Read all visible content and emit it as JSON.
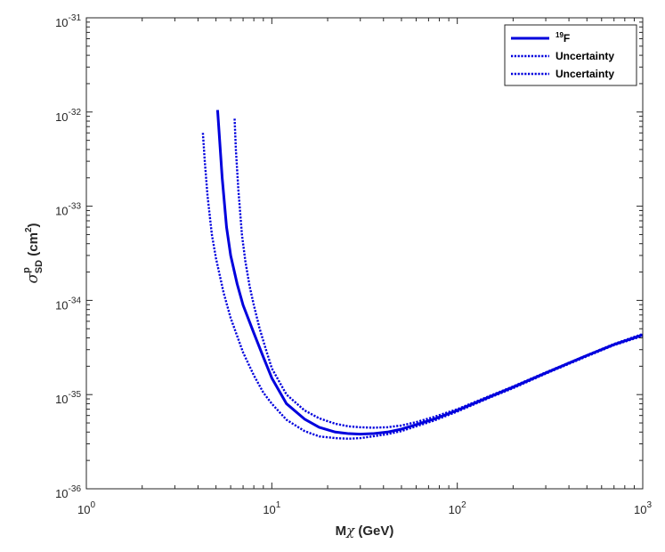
{
  "chart_data": {
    "type": "line",
    "xscale": "log",
    "yscale": "log",
    "xlim": [
      1,
      1000
    ],
    "ylim": [
      1e-36,
      1e-31
    ],
    "xlabel": {
      "main": "M",
      "sym": "χ",
      "unit": " (GeV)"
    },
    "ylabel": {
      "sym": "σ",
      "sup": "p",
      "sub": "SD",
      "unit": " (cm",
      "unit_sup": "2",
      "unit_end": ")"
    },
    "x_ticks": [
      {
        "value": 1,
        "base": "10",
        "exp": "0"
      },
      {
        "value": 10,
        "base": "10",
        "exp": "1"
      },
      {
        "value": 100,
        "base": "10",
        "exp": "2"
      },
      {
        "value": 1000,
        "base": "10",
        "exp": "3"
      }
    ],
    "y_ticks": [
      {
        "value": 1e-36,
        "base": "10",
        "exp": "-36"
      },
      {
        "value": 1e-35,
        "base": "10",
        "exp": "-35"
      },
      {
        "value": 1e-34,
        "base": "10",
        "exp": "-34"
      },
      {
        "value": 1e-33,
        "base": "10",
        "exp": "-33"
      },
      {
        "value": 1e-32,
        "base": "10",
        "exp": "-32"
      },
      {
        "value": 1e-31,
        "base": "10",
        "exp": "-31"
      }
    ],
    "grid": false,
    "legend_position": "top-right",
    "series": [
      {
        "name": "19F",
        "name_sup": "19",
        "name_main": "F",
        "style": "solid",
        "color": "#0000dd",
        "x": [
          5.1,
          5.2,
          5.4,
          5.7,
          6.0,
          6.5,
          7.0,
          8.0,
          9.0,
          10.0,
          12.0,
          15.0,
          18.0,
          22.0,
          26.0,
          30.0,
          35.0,
          42.0,
          50.0,
          60.0,
          75.0,
          100.0,
          150.0,
          200.0,
          300.0,
          500.0,
          700.0,
          1000.0
        ],
        "y": [
          1.05e-32,
          6e-33,
          2e-33,
          6e-34,
          3e-34,
          1.5e-34,
          8.9e-35,
          4.5e-35,
          2.5e-35,
          1.5e-35,
          8e-36,
          5.5e-36,
          4.5e-36,
          4e-36,
          3.85e-36,
          3.8e-36,
          3.85e-36,
          4e-36,
          4.3e-36,
          4.8e-36,
          5.5e-36,
          6.8e-36,
          9.5e-36,
          1.2e-35,
          1.7e-35,
          2.6e-35,
          3.4e-35,
          4.3e-35
        ]
      },
      {
        "name": "Uncertainty",
        "style": "dotted",
        "color": "#0000dd",
        "x": [
          6.3,
          6.4,
          6.6,
          6.9,
          7.2,
          7.6,
          8.0,
          8.6,
          9.3,
          10.0,
          12.0,
          15.0,
          18.0,
          22.0,
          26.0,
          30.0,
          35.0,
          42.0,
          50.0,
          60.0,
          75.0,
          100.0,
          150.0,
          200.0,
          300.0,
          500.0,
          700.0,
          1000.0
        ],
        "y": [
          8.5e-33,
          4e-33,
          1.5e-33,
          5e-34,
          2.6e-34,
          1.4e-34,
          8.9e-35,
          5e-35,
          3e-35,
          1.9e-35,
          1e-35,
          6.8e-36,
          5.6e-36,
          4.9e-36,
          4.6e-36,
          4.5e-36,
          4.45e-36,
          4.5e-36,
          4.7e-36,
          5.1e-36,
          5.8e-36,
          7e-36,
          9.7e-36,
          1.22e-35,
          1.72e-35,
          2.62e-35,
          3.45e-35,
          4.4e-35
        ]
      },
      {
        "name": "Uncertainty",
        "style": "dotted",
        "color": "#0000dd",
        "x": [
          4.25,
          4.35,
          4.5,
          4.75,
          5.0,
          5.5,
          6.0,
          7.0,
          8.0,
          9.0,
          10.0,
          12.0,
          15.0,
          18.0,
          22.0,
          26.0,
          30.0,
          35.0,
          42.0,
          50.0,
          60.0,
          75.0,
          100.0,
          150.0,
          200.0,
          300.0,
          500.0,
          700.0,
          1000.0
        ],
        "y": [
          6e-33,
          3e-33,
          1.3e-33,
          5e-34,
          2.8e-34,
          1.2e-34,
          6.5e-35,
          2.8e-35,
          1.6e-35,
          1.05e-35,
          8e-36,
          5.4e-36,
          4.1e-36,
          3.6e-36,
          3.45e-36,
          3.4e-36,
          3.45e-36,
          3.6e-36,
          3.8e-36,
          4.1e-36,
          4.6e-36,
          5.3e-36,
          6.6e-36,
          9.3e-36,
          1.17e-35,
          1.67e-35,
          2.55e-35,
          3.35e-35,
          4.2e-35
        ]
      }
    ]
  }
}
